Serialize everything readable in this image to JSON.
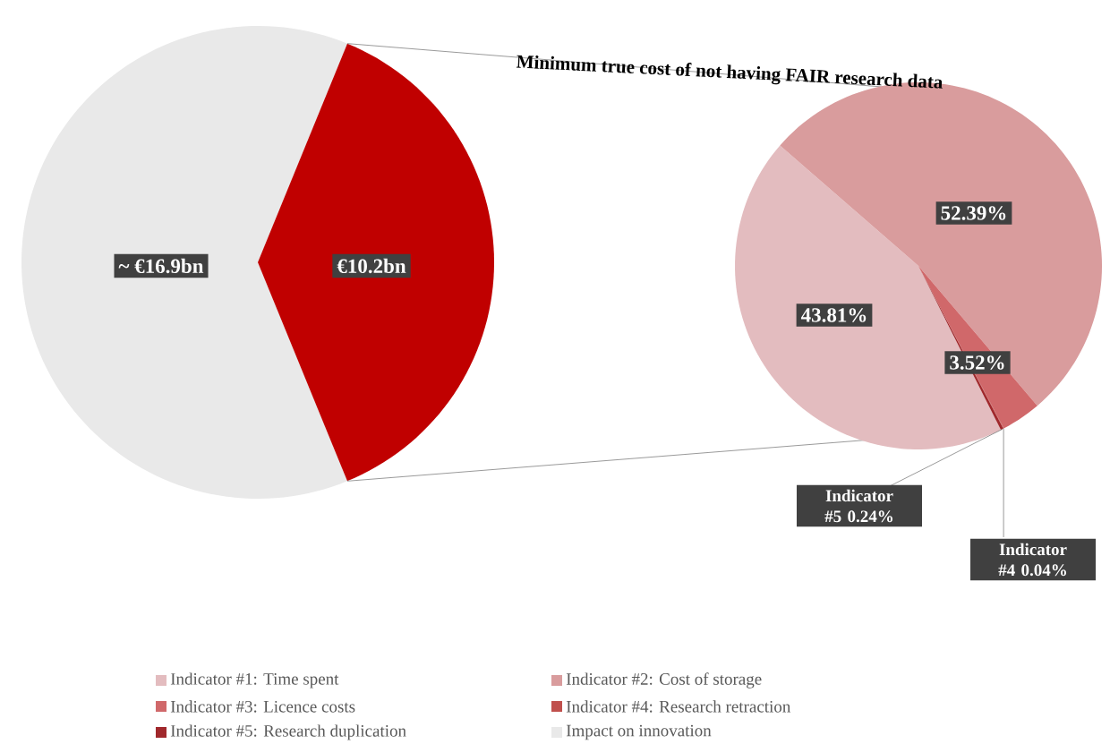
{
  "chart_data": [
    {
      "type": "pie",
      "categories": [
        "Impact on innovation",
        null
      ],
      "values": [
        16.9,
        10.2
      ],
      "colors": [
        "#e9e9e9",
        "#c00000"
      ],
      "value_labels": [
        "~ €16.9bn",
        "€10.2bn"
      ],
      "legend": "bottom"
    },
    {
      "type": "pie",
      "title": "Minimum true cost of not having FAIR research data",
      "categories": [
        "Indicator #1: Time spent",
        "Indicator #2: Cost of storage",
        "Indicator #3: Licence costs",
        "Indicator #4: Research retraction",
        "Indicator #5: Research duplication"
      ],
      "values": [
        43.81,
        52.39,
        3.52,
        0.04,
        0.24
      ],
      "colors": [
        "#e3bcbf",
        "#d99c9d",
        "#d0686a",
        "#c0504d",
        "#a0282c"
      ],
      "value_labels": [
        "43.81%",
        "52.39%",
        "3.52%",
        "Indicator #4 0.04%",
        "Indicator #5 0.24%"
      ],
      "legend": "bottom"
    }
  ]
}
